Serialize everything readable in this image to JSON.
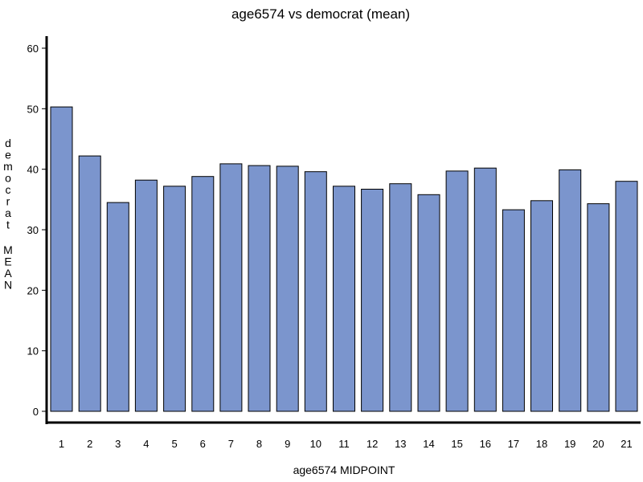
{
  "chart_data": {
    "type": "bar",
    "title": "age6574 vs democrat (mean)",
    "xlabel": "age6574 MIDPOINT",
    "ylabel": "democrat MEAN",
    "categories": [
      "1",
      "2",
      "3",
      "4",
      "5",
      "6",
      "7",
      "8",
      "9",
      "10",
      "11",
      "12",
      "13",
      "14",
      "15",
      "16",
      "17",
      "18",
      "19",
      "20",
      "21"
    ],
    "series": [
      {
        "values": [
          50.3,
          42.2,
          34.5,
          38.2,
          37.2,
          38.8,
          40.9,
          40.6,
          40.5,
          39.6,
          37.2,
          36.7,
          37.6,
          35.8,
          39.7,
          40.2,
          33.3,
          34.8,
          39.9,
          34.3,
          38.0
        ]
      }
    ],
    "ylim": [
      0,
      62
    ],
    "yticks": [
      0,
      10,
      20,
      30,
      40,
      50,
      60
    ],
    "grid": false,
    "legend": "none",
    "colors": {
      "bar_fill": "#7b95cd",
      "bar_stroke": "#000000",
      "axis": "#000000"
    }
  }
}
